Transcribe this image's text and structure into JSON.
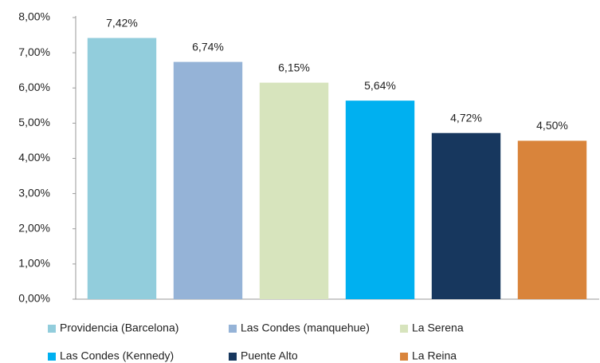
{
  "chart_data": {
    "type": "bar",
    "series": [
      {
        "name": "Providencia (Barcelona)",
        "color": "#92cddc",
        "values": [
          7.42
        ],
        "value_labels": [
          "7,42%"
        ]
      },
      {
        "name": "Las Condes (manquehue)",
        "color": "#95b3d7",
        "values": [
          6.74
        ],
        "value_labels": [
          "6,74%"
        ]
      },
      {
        "name": "La Serena",
        "color": "#d7e4bd",
        "values": [
          6.15
        ],
        "value_labels": [
          "6,15%"
        ]
      },
      {
        "name": "Las Condes (Kennedy)",
        "color": "#00b0f0",
        "values": [
          5.64
        ],
        "value_labels": [
          "5,64%"
        ]
      },
      {
        "name": "Puente Alto",
        "color": "#17375e",
        "values": [
          4.72
        ],
        "value_labels": [
          "4,72%"
        ]
      },
      {
        "name": "La Reina",
        "color": "#d9843b",
        "values": [
          4.5
        ],
        "value_labels": [
          "4,50%"
        ]
      }
    ],
    "ylim": [
      0,
      8
    ],
    "yticks": [
      {
        "value": 0,
        "label": "0,00%"
      },
      {
        "value": 1,
        "label": "1,00%"
      },
      {
        "value": 2,
        "label": "2,00%"
      },
      {
        "value": 3,
        "label": "3,00%"
      },
      {
        "value": 4,
        "label": "4,00%"
      },
      {
        "value": 5,
        "label": "5,00%"
      },
      {
        "value": 6,
        "label": "6,00%"
      },
      {
        "value": 7,
        "label": "7,00%"
      },
      {
        "value": 8,
        "label": "8,00%"
      }
    ],
    "grid": false,
    "legend": "bottom"
  }
}
